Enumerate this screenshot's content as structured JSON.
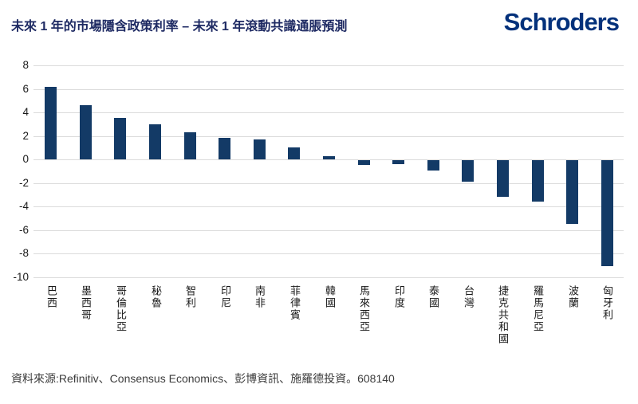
{
  "header": {
    "title": "未來 1 年的市場隱含政策利率 – 未來 1 年滾動共識通脹預測",
    "logo_text": "Schroders"
  },
  "footer": {
    "source_text": "資料來源:Refinitiv、Consensus Economics、彭博資訊、施羅德投資。608140"
  },
  "colors": {
    "bar": "#133A66",
    "gridline": "#DBDBDB",
    "title_text": "#1E2A63",
    "logo_text": "#03317B",
    "axis_text": "#1A1A1A",
    "footer_text": "#3C3C3C"
  },
  "chart_data": {
    "type": "bar",
    "title": "未來 1 年的市場隱含政策利率 – 未來 1 年滾動共識通脹預測",
    "categories": [
      "巴西",
      "墨西哥",
      "哥倫比亞",
      "秘魯",
      "智利",
      "印尼",
      "南非",
      "菲律賓",
      "韓國",
      "馬來西亞",
      "印度",
      "泰國",
      "台灣",
      "捷克共和國",
      "羅馬尼亞",
      "波蘭",
      "匈牙利"
    ],
    "values": [
      6.15,
      4.6,
      3.55,
      3.0,
      2.3,
      1.8,
      1.7,
      1.0,
      0.25,
      -0.4,
      -0.35,
      -0.9,
      -1.8,
      -3.1,
      -3.55,
      -5.45,
      -9.0
    ],
    "xlabel": "",
    "ylabel": "",
    "yticks": [
      8,
      6,
      4,
      2,
      0,
      -2,
      -4,
      -6,
      -8,
      -10
    ],
    "ylim": [
      -10,
      8
    ],
    "grid": true,
    "legend": false,
    "bar_color": "#133A66"
  }
}
